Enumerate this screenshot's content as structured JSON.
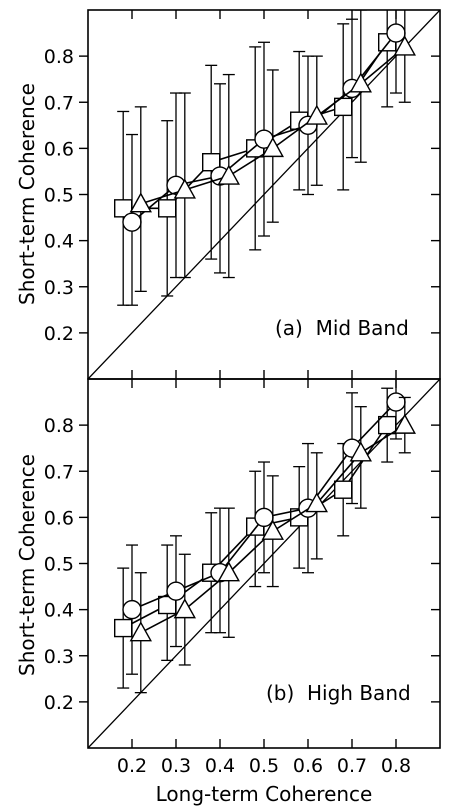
{
  "chart_data": [
    {
      "type": "scatter",
      "panel_label": "(a)  Mid Band",
      "ylabel": "Short-term Coherence",
      "xlim": [
        0.1,
        0.9
      ],
      "ylim": [
        0.1,
        0.9
      ],
      "xticks": [
        0.2,
        0.3,
        0.4,
        0.5,
        0.6,
        0.7,
        0.8
      ],
      "yticks": [
        0.2,
        0.3,
        0.4,
        0.5,
        0.6,
        0.7,
        0.8
      ],
      "ytick_labels": [
        "0.2",
        "0.3",
        "0.4",
        "0.5",
        "0.6",
        "0.7",
        "0.8"
      ],
      "xtick_labels": [
        "",
        "",
        "",
        "",
        "",
        "",
        ""
      ],
      "diagonal": true,
      "series": [
        {
          "marker": "square",
          "points": [
            {
              "x": 0.18,
              "y": 0.47,
              "lo": 0.26,
              "hi": 0.68
            },
            {
              "x": 0.28,
              "y": 0.47,
              "lo": 0.28,
              "hi": 0.66
            },
            {
              "x": 0.38,
              "y": 0.57,
              "lo": 0.36,
              "hi": 0.78
            },
            {
              "x": 0.48,
              "y": 0.6,
              "lo": 0.38,
              "hi": 0.82
            },
            {
              "x": 0.58,
              "y": 0.66,
              "lo": 0.51,
              "hi": 0.81
            },
            {
              "x": 0.68,
              "y": 0.69,
              "lo": 0.51,
              "hi": 0.87
            },
            {
              "x": 0.78,
              "y": 0.83,
              "lo": 0.69,
              "hi": 0.97
            }
          ]
        },
        {
          "marker": "circle",
          "points": [
            {
              "x": 0.2,
              "y": 0.44,
              "lo": 0.26,
              "hi": 0.63
            },
            {
              "x": 0.3,
              "y": 0.52,
              "lo": 0.32,
              "hi": 0.72
            },
            {
              "x": 0.4,
              "y": 0.54,
              "lo": 0.33,
              "hi": 0.74
            },
            {
              "x": 0.5,
              "y": 0.62,
              "lo": 0.41,
              "hi": 0.83
            },
            {
              "x": 0.6,
              "y": 0.65,
              "lo": 0.5,
              "hi": 0.8
            },
            {
              "x": 0.7,
              "y": 0.73,
              "lo": 0.58,
              "hi": 0.88
            },
            {
              "x": 0.8,
              "y": 0.85,
              "lo": 0.72,
              "hi": 0.98
            }
          ]
        },
        {
          "marker": "triangle",
          "points": [
            {
              "x": 0.22,
              "y": 0.48,
              "lo": 0.29,
              "hi": 0.69
            },
            {
              "x": 0.32,
              "y": 0.51,
              "lo": 0.32,
              "hi": 0.72
            },
            {
              "x": 0.42,
              "y": 0.54,
              "lo": 0.32,
              "hi": 0.76
            },
            {
              "x": 0.52,
              "y": 0.6,
              "lo": 0.44,
              "hi": 0.77
            },
            {
              "x": 0.62,
              "y": 0.67,
              "lo": 0.52,
              "hi": 0.8
            },
            {
              "x": 0.72,
              "y": 0.74,
              "lo": 0.57,
              "hi": 0.9
            },
            {
              "x": 0.82,
              "y": 0.82,
              "lo": 0.7,
              "hi": 0.95
            }
          ]
        }
      ]
    },
    {
      "type": "scatter",
      "panel_label": "(b)  High Band",
      "ylabel": "Short-term Coherence",
      "xlabel": "Long-term Coherence",
      "xlim": [
        0.1,
        0.9
      ],
      "ylim": [
        0.1,
        0.9
      ],
      "xticks": [
        0.2,
        0.3,
        0.4,
        0.5,
        0.6,
        0.7,
        0.8
      ],
      "yticks": [
        0.2,
        0.3,
        0.4,
        0.5,
        0.6,
        0.7,
        0.8
      ],
      "ytick_labels": [
        "0.2",
        "0.3",
        "0.4",
        "0.5",
        "0.6",
        "0.7",
        "0.8"
      ],
      "xtick_labels": [
        "0.2",
        "0.3",
        "0.4",
        "0.5",
        "0.6",
        "0.7",
        "0.8"
      ],
      "diagonal": true,
      "series": [
        {
          "marker": "square",
          "points": [
            {
              "x": 0.18,
              "y": 0.36,
              "lo": 0.23,
              "hi": 0.49
            },
            {
              "x": 0.28,
              "y": 0.41,
              "lo": 0.29,
              "hi": 0.54
            },
            {
              "x": 0.38,
              "y": 0.48,
              "lo": 0.35,
              "hi": 0.61
            },
            {
              "x": 0.48,
              "y": 0.58,
              "lo": 0.45,
              "hi": 0.7
            },
            {
              "x": 0.58,
              "y": 0.6,
              "lo": 0.49,
              "hi": 0.71
            },
            {
              "x": 0.68,
              "y": 0.66,
              "lo": 0.56,
              "hi": 0.76
            },
            {
              "x": 0.78,
              "y": 0.8,
              "lo": 0.72,
              "hi": 0.88
            }
          ]
        },
        {
          "marker": "circle",
          "points": [
            {
              "x": 0.2,
              "y": 0.4,
              "lo": 0.26,
              "hi": 0.54
            },
            {
              "x": 0.3,
              "y": 0.44,
              "lo": 0.32,
              "hi": 0.56
            },
            {
              "x": 0.4,
              "y": 0.48,
              "lo": 0.35,
              "hi": 0.62
            },
            {
              "x": 0.5,
              "y": 0.6,
              "lo": 0.48,
              "hi": 0.72
            },
            {
              "x": 0.6,
              "y": 0.62,
              "lo": 0.48,
              "hi": 0.76
            },
            {
              "x": 0.7,
              "y": 0.75,
              "lo": 0.63,
              "hi": 0.87
            },
            {
              "x": 0.8,
              "y": 0.85,
              "lo": 0.77,
              "hi": 0.93
            }
          ]
        },
        {
          "marker": "triangle",
          "points": [
            {
              "x": 0.22,
              "y": 0.35,
              "lo": 0.22,
              "hi": 0.48
            },
            {
              "x": 0.32,
              "y": 0.4,
              "lo": 0.28,
              "hi": 0.52
            },
            {
              "x": 0.42,
              "y": 0.48,
              "lo": 0.34,
              "hi": 0.62
            },
            {
              "x": 0.52,
              "y": 0.57,
              "lo": 0.45,
              "hi": 0.69
            },
            {
              "x": 0.62,
              "y": 0.63,
              "lo": 0.51,
              "hi": 0.74
            },
            {
              "x": 0.72,
              "y": 0.74,
              "lo": 0.62,
              "hi": 0.84
            },
            {
              "x": 0.82,
              "y": 0.8,
              "lo": 0.74,
              "hi": 0.86
            }
          ]
        }
      ]
    }
  ]
}
